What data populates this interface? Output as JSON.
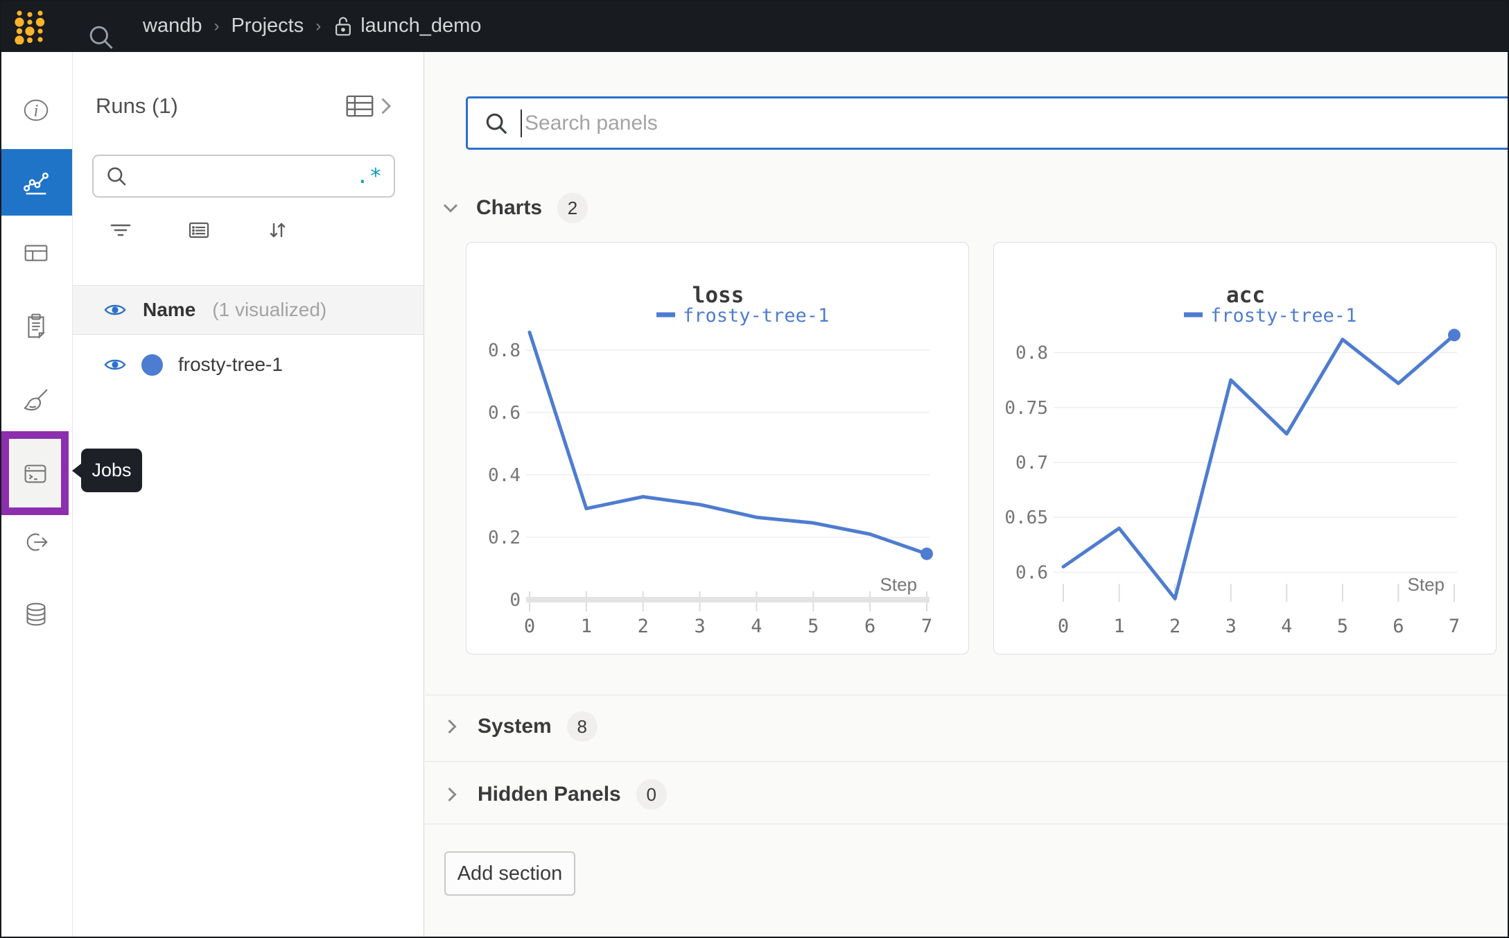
{
  "topbar": {
    "breadcrumb": {
      "team": "wandb",
      "section": "Projects",
      "project": "launch_demo"
    }
  },
  "sidebar": {
    "tooltip": "Jobs",
    "items": [
      "overview",
      "workspace",
      "table",
      "logs",
      "sweeps",
      "jobs",
      "launch",
      "artifacts"
    ]
  },
  "runs_panel": {
    "title": "Runs (1)",
    "search_value": "",
    "regex_icon": ".*",
    "name_header": "Name",
    "name_note": "(1 visualized)",
    "run_name": "frosty-tree-1"
  },
  "main": {
    "search_placeholder": "Search panels",
    "sections": [
      {
        "label": "Charts",
        "count": "2"
      },
      {
        "label": "System",
        "count": "8"
      },
      {
        "label": "Hidden Panels",
        "count": "0"
      }
    ],
    "add_section_label": "Add section"
  },
  "chart_data": [
    {
      "type": "line",
      "title": "loss",
      "x": [
        0,
        1,
        2,
        3,
        4,
        5,
        6,
        7
      ],
      "series": [
        {
          "name": "frosty-tree-1",
          "values": [
            0.857,
            0.292,
            0.33,
            0.305,
            0.264,
            0.246,
            0.21,
            0.147
          ]
        }
      ],
      "xlabel": "Step",
      "ylim": [
        0,
        0.88
      ],
      "yticks": [
        {
          "value": 0,
          "label": "0"
        },
        {
          "value": 0.2,
          "label": "0.2"
        },
        {
          "value": 0.4,
          "label": "0.4"
        },
        {
          "value": 0.6,
          "label": "0.6"
        },
        {
          "value": 0.8,
          "label": "0.8"
        }
      ],
      "grid": "horizontal",
      "legend_position": "top-center",
      "zero_axis_band": true,
      "end_marker": true
    },
    {
      "type": "line",
      "title": "acc",
      "x": [
        0,
        1,
        2,
        3,
        4,
        5,
        6,
        7
      ],
      "series": [
        {
          "name": "frosty-tree-1",
          "values": [
            0.605,
            0.64,
            0.576,
            0.775,
            0.726,
            0.812,
            0.772,
            0.816
          ]
        }
      ],
      "xlabel": "Step",
      "ylim": [
        0.575,
        0.825
      ],
      "yticks": [
        {
          "value": 0.6,
          "label": "0.6"
        },
        {
          "value": 0.65,
          "label": "0.65"
        },
        {
          "value": 0.7,
          "label": "0.7"
        },
        {
          "value": 0.75,
          "label": "0.75"
        },
        {
          "value": 0.8,
          "label": "0.8"
        }
      ],
      "grid": "horizontal",
      "legend_position": "top-center",
      "zero_axis_band": false,
      "end_marker": true
    }
  ],
  "colors": {
    "topbar_bg": "#181b1f",
    "logo_yellow": "#fcb42a",
    "accent_blue": "#2074c8",
    "focus_blue": "#2b6fce",
    "run_blue": "#4e7cd0",
    "highlight_purple": "#8d2eae",
    "regex_teal": "#0aa0b5",
    "tooltip_bg": "#1d2127"
  }
}
